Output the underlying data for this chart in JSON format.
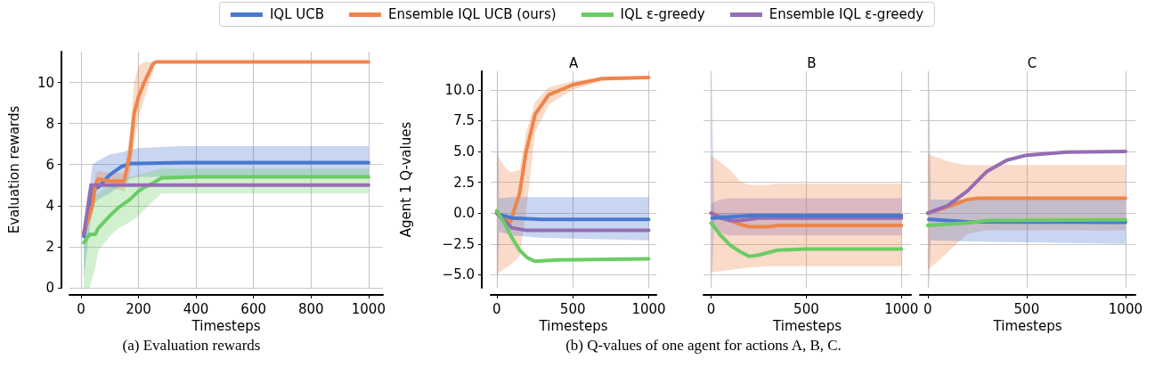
{
  "chart_data": [
    {
      "type": "line",
      "xlabel": "Timesteps",
      "ylabel": "Evaluation rewards",
      "xlim": [
        -40,
        1050
      ],
      "xticks": [
        0,
        200,
        400,
        600,
        800,
        1000
      ],
      "ylim": [
        0,
        11.5
      ],
      "yticks": [
        0,
        2,
        4,
        6,
        8,
        10
      ],
      "grid": true,
      "legend": "top",
      "annotations": [
        "(a) Evaluation rewards"
      ],
      "series": [
        {
          "name": "IQL UCB",
          "color": "#4878cf",
          "x": [
            10,
            40,
            60,
            100,
            140,
            170,
            200,
            350,
            1000
          ],
          "values": [
            2.5,
            4.8,
            4.9,
            5.5,
            5.9,
            6.05,
            6.05,
            6.1,
            6.1
          ],
          "upper": [
            2.8,
            6.0,
            6.2,
            6.5,
            6.6,
            6.7,
            6.8,
            6.9,
            6.9
          ],
          "lower": [
            0.5,
            4.0,
            4.3,
            4.6,
            5.0,
            5.3,
            5.4,
            5.4,
            5.4
          ]
        },
        {
          "name": "Ensemble IQL UCB (ours)",
          "color": "#ee854a",
          "x": [
            10,
            40,
            50,
            60,
            100,
            150,
            170,
            185,
            200,
            220,
            250,
            260,
            1000
          ],
          "values": [
            2.7,
            4.0,
            5.0,
            5.3,
            5.2,
            5.2,
            6.5,
            8.5,
            9.3,
            10.0,
            10.9,
            11.0,
            11.0
          ],
          "upper": [
            3.0,
            4.6,
            5.5,
            5.7,
            5.6,
            5.6,
            7.5,
            10.0,
            10.8,
            11.0,
            11.0,
            11.0,
            11.0
          ],
          "lower": [
            2.4,
            3.5,
            4.5,
            4.9,
            4.9,
            4.7,
            5.5,
            7.0,
            8.3,
            9.2,
            10.5,
            11.0,
            11.0
          ]
        },
        {
          "name": "IQL ε-greedy",
          "color": "#6acc64",
          "x": [
            10,
            30,
            50,
            60,
            100,
            130,
            170,
            200,
            220,
            250,
            280,
            400,
            1000
          ],
          "values": [
            2.2,
            2.6,
            2.6,
            2.9,
            3.5,
            3.9,
            4.3,
            4.7,
            4.9,
            5.1,
            5.35,
            5.4,
            5.4
          ],
          "upper": [
            2.6,
            4.0,
            4.5,
            4.6,
            5.0,
            5.2,
            5.4,
            5.5,
            5.6,
            5.7,
            5.8,
            5.8,
            5.8
          ],
          "lower": [
            0,
            0,
            1.0,
            1.8,
            2.5,
            2.9,
            3.2,
            3.5,
            3.8,
            4.2,
            4.6,
            4.6,
            4.6
          ]
        },
        {
          "name": "Ensemble IQL ε-greedy",
          "color": "#956cb4",
          "x": [
            10,
            35,
            1000
          ],
          "values": [
            2.6,
            5.0,
            5.0
          ]
        }
      ]
    },
    {
      "type": "line",
      "title": "A",
      "xlabel": "Timesteps",
      "ylabel": "Agent 1 Q-values",
      "xlim": [
        -40,
        1050
      ],
      "xticks": [
        0,
        500,
        1000
      ],
      "ylim": [
        -6.05,
        11.5
      ],
      "yticks": [
        {
          "value": -5,
          "label": "−5.0"
        },
        {
          "value": -2.5,
          "label": "−2.5"
        },
        {
          "value": 0,
          "label": "0.0"
        },
        {
          "value": 2.5,
          "label": "2.5"
        },
        {
          "value": 5,
          "label": "5.0"
        },
        {
          "value": 7.5,
          "label": "7.5"
        },
        {
          "value": 10,
          "label": "10.0"
        }
      ],
      "grid": true,
      "annotations": [
        "(b) Q-values of one agent for actions A, B, C."
      ],
      "series": [
        {
          "color": "#ee854a",
          "x": [
            0,
            50,
            90,
            150,
            192,
            252,
            342,
            500,
            688,
            1000
          ],
          "values": [
            0,
            -0.5,
            -0.7,
            1.6,
            4.9,
            8.0,
            9.6,
            10.4,
            10.9,
            11.0
          ],
          "upper": [
            4.8,
            3.8,
            3.3,
            3.5,
            6.5,
            9.0,
            10.2,
            10.7,
            11.0,
            11.1
          ],
          "lower": [
            -5.0,
            -4.5,
            -4.2,
            -3.5,
            0,
            6.5,
            8.8,
            10.0,
            10.7,
            10.9
          ]
        },
        {
          "color": "#4878cf",
          "x": [
            5,
            15,
            100,
            300,
            1000
          ],
          "values": [
            0,
            -0.1,
            -0.4,
            -0.5,
            -0.5
          ],
          "upper": [
            11.5,
            1.2,
            1.3,
            1.3,
            1.3
          ],
          "lower": [
            -6.05,
            -1.5,
            -1.8,
            -2.0,
            -2.2
          ]
        },
        {
          "color": "#956cb4",
          "x": [
            0,
            100,
            200,
            1000
          ],
          "values": [
            0,
            -1.2,
            -1.4,
            -1.4
          ]
        },
        {
          "color": "#6acc64",
          "x": [
            0,
            50,
            100,
            150,
            200,
            250,
            400,
            1000
          ],
          "values": [
            0.2,
            -0.8,
            -2.0,
            -3.0,
            -3.6,
            -3.9,
            -3.8,
            -3.7
          ]
        }
      ]
    },
    {
      "type": "line",
      "title": "B",
      "xlabel": "Timesteps",
      "xlim": [
        -40,
        1050
      ],
      "xticks": [
        0,
        500,
        1000
      ],
      "ylim": [
        -6.05,
        11.5
      ],
      "yticks": [
        -5,
        -2.5,
        0,
        2.5,
        5,
        7.5,
        10
      ],
      "grid": true,
      "tick_labels": "x",
      "series": [
        {
          "color": "#ee854a",
          "x": [
            0,
            100,
            150,
            200,
            300,
            350,
            1000
          ],
          "values": [
            0,
            -0.6,
            -0.9,
            -1.1,
            -1.1,
            -1.0,
            -1.0
          ],
          "upper": [
            4.7,
            3.5,
            2.6,
            2.3,
            2.3,
            2.4,
            2.4
          ],
          "lower": [
            -4.8,
            -4.6,
            -4.5,
            -4.4,
            -4.3,
            -4.3,
            -4.3
          ]
        },
        {
          "color": "#956cb4",
          "x": [
            0,
            50,
            100,
            150,
            250,
            1000
          ],
          "values": [
            0,
            -0.4,
            -0.6,
            -0.6,
            -0.4,
            -0.4
          ],
          "upper": [
            0.8,
            1.1,
            1.2,
            1.2,
            1.2,
            1.2
          ],
          "lower": [
            -0.8,
            -1.6,
            -1.8,
            -1.8,
            -1.8,
            -1.8
          ]
        },
        {
          "color": "#4878cf",
          "x": [
            5,
            15,
            200,
            1000
          ],
          "values": [
            -0.4,
            -0.4,
            -0.2,
            -0.2
          ],
          "upper": [
            11.5,
            0,
            0,
            0
          ],
          "lower": [
            -6.05,
            -0.4,
            -0.3,
            -0.3
          ]
        },
        {
          "color": "#6acc64",
          "x": [
            0,
            50,
            100,
            150,
            200,
            250,
            350,
            500,
            1000
          ],
          "values": [
            -0.8,
            -1.8,
            -2.6,
            -3.1,
            -3.5,
            -3.4,
            -3.0,
            -2.9,
            -2.9
          ]
        }
      ]
    },
    {
      "type": "line",
      "title": "C",
      "xlabel": "Timesteps",
      "xlim": [
        -40,
        1050
      ],
      "xticks": [
        0,
        500,
        1000
      ],
      "ylim": [
        -6.05,
        11.5
      ],
      "yticks": [
        -5,
        -2.5,
        0,
        2.5,
        5,
        7.5,
        10
      ],
      "grid": true,
      "tick_labels": "x",
      "series": [
        {
          "color": "#ee854a",
          "x": [
            0,
            100,
            150,
            200,
            250,
            300,
            1000
          ],
          "values": [
            0,
            0.5,
            0.8,
            1.1,
            1.2,
            1.2,
            1.2
          ],
          "upper": [
            4.8,
            4.2,
            4.0,
            3.9,
            3.9,
            3.9,
            3.9
          ],
          "lower": [
            -4.6,
            -3.2,
            -2.4,
            -1.7,
            -1.5,
            -1.4,
            -1.4
          ]
        },
        {
          "color": "#4878cf",
          "x": [
            5,
            15,
            200,
            1000
          ],
          "values": [
            -0.5,
            -0.5,
            -0.7,
            -0.75
          ],
          "upper": [
            11.5,
            1.1,
            1.1,
            1.1
          ],
          "lower": [
            -6.05,
            -2.2,
            -2.3,
            -2.5
          ]
        },
        {
          "color": "#6acc64",
          "x": [
            0,
            200,
            300,
            1000
          ],
          "values": [
            -1.0,
            -0.8,
            -0.6,
            -0.55
          ]
        },
        {
          "color": "#956cb4",
          "x": [
            0,
            100,
            200,
            300,
            400,
            500,
            700,
            1000
          ],
          "values": [
            0,
            0.6,
            1.8,
            3.4,
            4.3,
            4.7,
            4.95,
            5.0
          ]
        }
      ]
    }
  ]
}
